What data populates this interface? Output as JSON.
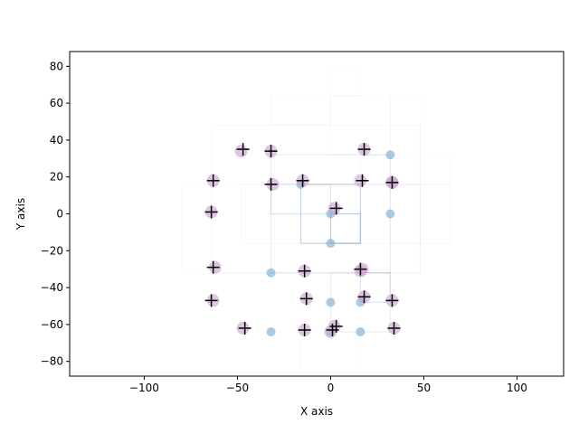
{
  "chart_data": {
    "type": "scatter",
    "title": "",
    "xlabel": "X axis",
    "ylabel": "Y axis",
    "xlim": [
      -140,
      125
    ],
    "ylim": [
      -88,
      88
    ],
    "xticks": [
      -100,
      -50,
      0,
      50,
      100
    ],
    "yticks": [
      -80,
      -60,
      -40,
      -20,
      0,
      20,
      40,
      60,
      80
    ],
    "xtick_labels": [
      "−100",
      "−50",
      "0",
      "50",
      "100"
    ],
    "ytick_labels": [
      "−80",
      "−60",
      "−40",
      "−20",
      "0",
      "20",
      "40",
      "60",
      "80"
    ],
    "grid": false,
    "legend": "none",
    "colors": {
      "blue_points": "#7bafd6",
      "purple_points": "#c9a0cf",
      "crosses": "#000000",
      "boxes": "#9bb1c8"
    },
    "series": [
      {
        "marker": "circle-blue",
        "x": [
          -16,
          0,
          0,
          32,
          32,
          -32,
          16,
          0,
          -32,
          0,
          16
        ],
        "y": [
          16,
          0,
          -16,
          32,
          0,
          -32,
          -48,
          -48,
          -64,
          -64,
          -64
        ]
      },
      {
        "marker": "circle-purple",
        "x": [
          -48,
          -32,
          18,
          -63,
          -31,
          -15,
          16,
          33,
          33,
          -64,
          2,
          -62,
          -14,
          16,
          17,
          -63,
          -13,
          18,
          33,
          -47,
          -14,
          2,
          0,
          34
        ],
        "y": [
          34,
          34,
          35,
          18,
          16,
          18,
          18,
          17,
          17,
          1,
          3,
          -29,
          -31,
          -31,
          -30,
          -47,
          -46,
          -45,
          -47,
          -62,
          -63,
          -61,
          -64,
          -62
        ]
      },
      {
        "marker": "cross",
        "x": [
          -47,
          -32,
          18,
          -63,
          -32,
          -15,
          17,
          33,
          -64,
          3,
          -63,
          -14,
          16,
          -64,
          -13,
          18,
          33,
          -46,
          -14,
          3,
          1,
          34
        ],
        "y": [
          35,
          34,
          35,
          18,
          16,
          18,
          18,
          17,
          1,
          3,
          -29,
          -31,
          -30,
          -47,
          -46,
          -45,
          -47,
          -62,
          -63,
          -61,
          -63,
          -62
        ]
      }
    ],
    "boxes": [
      {
        "x0": -16,
        "x1": 16,
        "y0": -16,
        "y1": 16,
        "alpha": 0.55
      },
      {
        "x0": 0,
        "x1": 16,
        "y0": -16,
        "y1": 0,
        "alpha": 0.65
      },
      {
        "x0": -32,
        "x1": 0,
        "y0": 0,
        "y1": 16,
        "alpha": 0.35
      },
      {
        "x0": -32,
        "x1": 32,
        "y0": -32,
        "y1": 32,
        "alpha": 0.22
      },
      {
        "x0": 16,
        "x1": 32,
        "y0": -48,
        "y1": -32,
        "alpha": 0.3
      },
      {
        "x0": 0,
        "x1": 32,
        "y0": -64,
        "y1": -32,
        "alpha": 0.2
      },
      {
        "x0": -64,
        "x1": 48,
        "y0": -32,
        "y1": 48,
        "alpha": 0.08
      },
      {
        "x0": -48,
        "x1": 64,
        "y0": -16,
        "y1": 16,
        "alpha": 0.07
      },
      {
        "x0": -80,
        "x1": 48,
        "y0": -32,
        "y1": 16,
        "alpha": 0.06
      },
      {
        "x0": 0,
        "x1": 32,
        "y0": 32,
        "y1": 64,
        "alpha": 0.06
      },
      {
        "x0": -32,
        "x1": 0,
        "y0": 48,
        "y1": 64,
        "alpha": 0.05
      },
      {
        "x0": 0,
        "x1": 16,
        "y0": 64,
        "y1": 80,
        "alpha": 0.05
      },
      {
        "x0": 16,
        "x1": 64,
        "y0": 16,
        "y1": 32,
        "alpha": 0.06
      },
      {
        "x0": 32,
        "x1": 48,
        "y0": -16,
        "y1": 64,
        "alpha": 0.05
      },
      {
        "x0": -16,
        "x1": 16,
        "y0": -88,
        "y1": -64,
        "alpha": 0.05
      }
    ]
  }
}
